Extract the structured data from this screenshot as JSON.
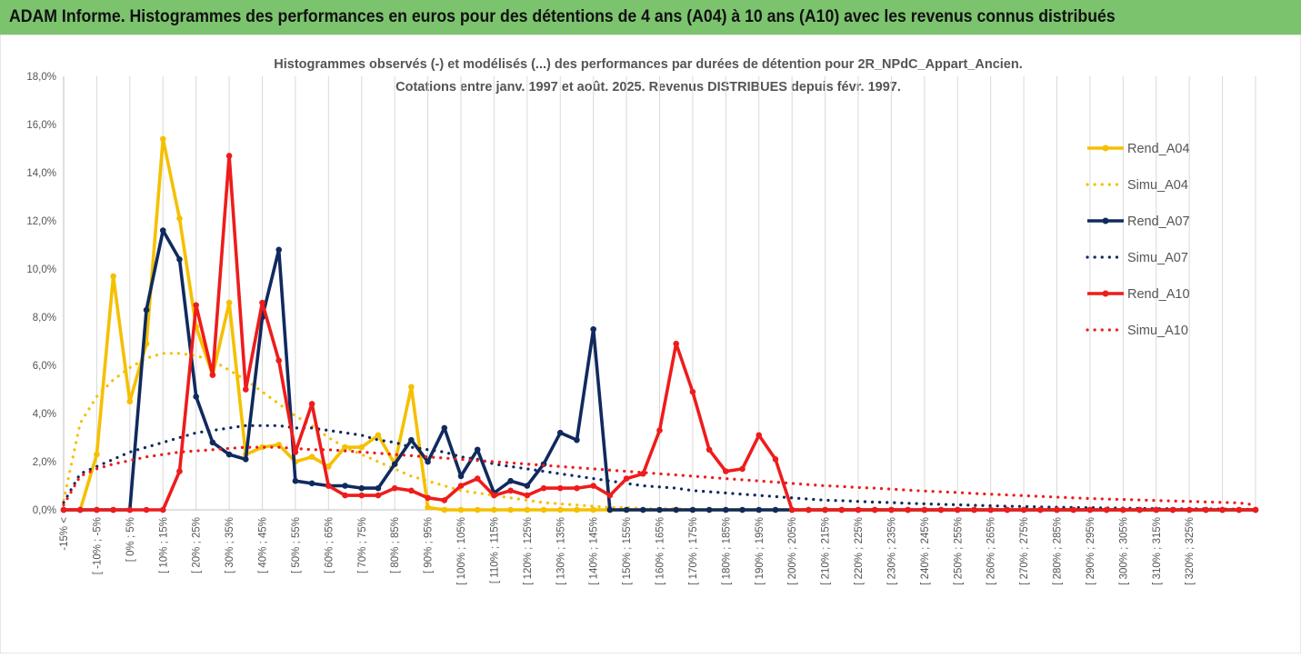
{
  "banner": {
    "title": "ADAM Informe. Histogrammes des performances en euros pour des détentions de 4 ans (A04) à 10 ans (A10) avec les revenus connus distribués"
  },
  "colors": {
    "banner": "#7cc36e",
    "a04": "#f5c000",
    "a07": "#102a5e",
    "a10": "#ee1c1c",
    "grid": "#d9d9d9"
  },
  "chart_data": {
    "type": "line",
    "title_lines": [
      "Histogrammes observés (-) et modélisés (...) des performances par durées de détention pour 2R_NPdC_Appart_Ancien.",
      "Cotations entre janv. 1997 et août. 2025. Revenus DISTRIBUES depuis févr. 1997."
    ],
    "ylim": [
      0,
      18
    ],
    "y_unit": "%",
    "yticks": [
      "0,0%",
      "2,0%",
      "4,0%",
      "6,0%",
      "8,0%",
      "10,0%",
      "12,0%",
      "14,0%",
      "16,0%",
      "18,0%"
    ],
    "grid": "vertical",
    "legend_position": "right",
    "x_labels": [
      "-15% <",
      "[ -10% ; -5%",
      "[ 0% ; 5%",
      "[ 10% ; 15%",
      "[ 20% ; 25%",
      "[ 30% ; 35%",
      "[ 40% ; 45%",
      "[ 50% ; 55%",
      "[ 60% ; 65%",
      "[ 70% ; 75%",
      "[ 80% ; 85%",
      "[ 90% ; 95%",
      "[ 100% ; 105%",
      "[ 110% ; 115%",
      "[ 120% ; 125%",
      "[ 130% ; 135%",
      "[ 140% ; 145%",
      "[ 150% ; 155%",
      "[ 160% ; 165%",
      "[ 170% ; 175%",
      "[ 180% ; 185%",
      "[ 190% ; 195%",
      "[ 200% ; 205%",
      "[ 210% ; 215%",
      "[ 220% ; 225%",
      "[ 230% ; 235%",
      "[ 240% ; 245%",
      "[ 250% ; 255%",
      "[ 260% ; 265%",
      "[ 270% ; 275%",
      "[ 280% ; 285%",
      "[ 290% ; 295%",
      "[ 300% ; 305%",
      "[ 310% ; 315%",
      "[ 320% ; 325%"
    ],
    "series": [
      {
        "name": "Rend_A04",
        "style": "solid",
        "color": "#f5c000",
        "values": [
          0.0,
          0.0,
          2.3,
          9.7,
          4.5,
          6.9,
          15.4,
          12.1,
          7.6,
          5.6,
          8.6,
          2.3,
          2.6,
          2.7,
          2.0,
          2.2,
          1.8,
          2.6,
          2.6,
          3.1,
          1.9,
          5.1,
          0.1,
          0.0,
          0.0,
          0.0,
          0.0,
          0.0,
          0.0,
          0.0,
          0.0,
          0.0,
          0.0,
          0.0,
          0.0,
          0.0,
          0.0,
          0.0,
          0.0,
          0.0,
          0.0,
          0.0,
          0.0,
          0.0,
          0.0,
          0.0,
          0.0,
          0.0,
          0.0,
          0.0,
          0.0,
          0.0,
          0.0,
          0.0,
          0.0,
          0.0,
          0.0,
          0.0,
          0.0,
          0.0,
          0.0,
          0.0,
          0.0,
          0.0,
          0.0,
          0.0,
          0.0,
          0.0,
          0.0,
          0.0,
          0.0,
          0.0,
          0.0
        ]
      },
      {
        "name": "Simu_A04",
        "style": "dotted",
        "color": "#f5c000",
        "values": [
          0.4,
          3.6,
          4.7,
          5.4,
          5.9,
          6.3,
          6.5,
          6.5,
          6.4,
          6.2,
          5.8,
          5.4,
          4.9,
          4.4,
          3.9,
          3.5,
          3.0,
          2.6,
          2.3,
          2.0,
          1.7,
          1.4,
          1.2,
          1.0,
          0.8,
          0.7,
          0.6,
          0.5,
          0.4,
          0.3,
          0.25,
          0.2,
          0.15,
          0.1,
          0.1,
          0.05,
          0.05,
          0.05,
          0.0,
          0.0,
          0.0,
          0.0,
          0.0,
          0.0,
          0.0,
          0.0,
          0.0,
          0.0,
          0.0,
          0.0,
          0.0,
          0.0,
          0.0,
          0.0,
          0.0,
          0.0,
          0.0,
          0.0,
          0.0,
          0.0,
          0.0,
          0.0,
          0.0,
          0.0,
          0.0,
          0.0,
          0.0,
          0.0,
          0.0,
          0.0,
          0.0,
          0.0,
          0.0
        ]
      },
      {
        "name": "Rend_A07",
        "style": "solid",
        "color": "#102a5e",
        "values": [
          0.0,
          0.0,
          0.0,
          0.0,
          0.0,
          8.3,
          11.6,
          10.4,
          4.7,
          2.8,
          2.3,
          2.1,
          8.0,
          10.8,
          1.2,
          1.1,
          1.0,
          1.0,
          0.9,
          0.9,
          1.9,
          2.9,
          2.0,
          3.4,
          1.4,
          2.5,
          0.7,
          1.2,
          1.0,
          1.9,
          3.2,
          2.9,
          7.5,
          0.0,
          0.0,
          0.0,
          0.0,
          0.0,
          0.0,
          0.0,
          0.0,
          0.0,
          0.0,
          0.0,
          0.0,
          0.0,
          0.0,
          0.0,
          0.0,
          0.0,
          0.0,
          0.0,
          0.0,
          0.0,
          0.0,
          0.0,
          0.0,
          0.0,
          0.0,
          0.0,
          0.0,
          0.0,
          0.0,
          0.0,
          0.0,
          0.0,
          0.0,
          0.0,
          0.0,
          0.0,
          0.0,
          0.0,
          0.0
        ]
      },
      {
        "name": "Simu_A07",
        "style": "dotted",
        "color": "#102a5e",
        "values": [
          0.3,
          1.5,
          1.8,
          2.1,
          2.4,
          2.6,
          2.8,
          3.0,
          3.2,
          3.3,
          3.4,
          3.5,
          3.5,
          3.5,
          3.4,
          3.4,
          3.3,
          3.2,
          3.1,
          2.9,
          2.8,
          2.6,
          2.5,
          2.4,
          2.2,
          2.1,
          1.9,
          1.8,
          1.7,
          1.6,
          1.5,
          1.4,
          1.3,
          1.2,
          1.1,
          1.0,
          0.95,
          0.9,
          0.8,
          0.75,
          0.7,
          0.65,
          0.6,
          0.55,
          0.5,
          0.45,
          0.4,
          0.38,
          0.35,
          0.32,
          0.3,
          0.27,
          0.25,
          0.23,
          0.21,
          0.19,
          0.17,
          0.15,
          0.14,
          0.12,
          0.11,
          0.1,
          0.09,
          0.08,
          0.07,
          0.06,
          0.05,
          0.05,
          0.04,
          0.04,
          0.03,
          0.03,
          0.02
        ]
      },
      {
        "name": "Rend_A10",
        "style": "solid",
        "color": "#ee1c1c",
        "values": [
          0.0,
          0.0,
          0.0,
          0.0,
          0.0,
          0.0,
          0.0,
          1.6,
          8.5,
          5.6,
          14.7,
          5.0,
          8.6,
          6.2,
          2.4,
          4.4,
          1.0,
          0.6,
          0.6,
          0.6,
          0.9,
          0.8,
          0.5,
          0.4,
          1.0,
          1.3,
          0.6,
          0.8,
          0.6,
          0.9,
          0.9,
          0.9,
          1.0,
          0.6,
          1.3,
          1.5,
          3.3,
          6.9,
          4.9,
          2.5,
          1.6,
          1.7,
          3.1,
          2.1,
          0.0,
          0.0,
          0.0,
          0.0,
          0.0,
          0.0,
          0.0,
          0.0,
          0.0,
          0.0,
          0.0,
          0.0,
          0.0,
          0.0,
          0.0,
          0.0,
          0.0,
          0.0,
          0.0,
          0.0,
          0.0,
          0.0,
          0.0,
          0.0,
          0.0,
          0.0,
          0.0,
          0.0,
          0.0
        ]
      },
      {
        "name": "Simu_A10",
        "style": "dotted",
        "color": "#ee1c1c",
        "values": [
          0.2,
          1.4,
          1.7,
          1.9,
          2.05,
          2.2,
          2.3,
          2.4,
          2.45,
          2.5,
          2.55,
          2.6,
          2.6,
          2.6,
          2.55,
          2.5,
          2.5,
          2.45,
          2.4,
          2.35,
          2.3,
          2.25,
          2.2,
          2.15,
          2.1,
          2.05,
          2.0,
          1.95,
          1.9,
          1.85,
          1.8,
          1.75,
          1.7,
          1.65,
          1.6,
          1.55,
          1.5,
          1.45,
          1.4,
          1.35,
          1.3,
          1.25,
          1.2,
          1.15,
          1.1,
          1.05,
          1.0,
          0.97,
          0.93,
          0.9,
          0.86,
          0.82,
          0.78,
          0.75,
          0.72,
          0.68,
          0.65,
          0.62,
          0.59,
          0.56,
          0.53,
          0.5,
          0.47,
          0.45,
          0.43,
          0.41,
          0.39,
          0.37,
          0.35,
          0.33,
          0.31,
          0.29,
          0.2
        ]
      }
    ]
  }
}
